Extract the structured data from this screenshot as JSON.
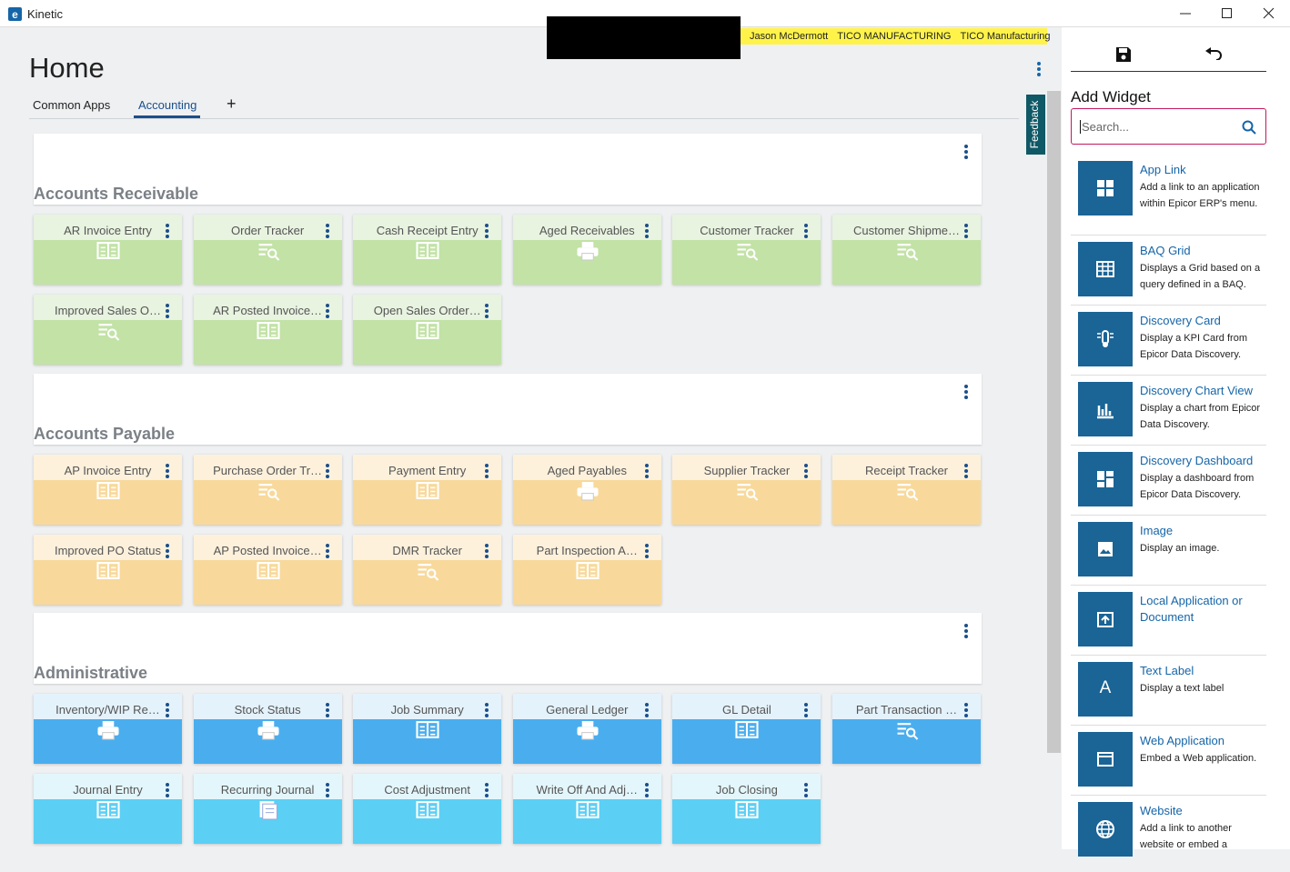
{
  "window": {
    "title": "Kinetic"
  },
  "user_bar": {
    "user": "Jason McDermott",
    "company": "TICO MANUFACTURING",
    "site": "TICO Manufacturing"
  },
  "page": {
    "title": "Home",
    "tabs": [
      "Common Apps",
      "Accounting"
    ],
    "active_tab": 1,
    "add_tab": "+",
    "feedback": "Feedback"
  },
  "sections": [
    {
      "title": "Accounts Receivable",
      "top": "#e8f3e0",
      "color": "#c2e2a6",
      "tiles": [
        {
          "label": "AR Invoice Entry",
          "icon": "form"
        },
        {
          "label": "Order Tracker",
          "icon": "search"
        },
        {
          "label": "Cash Receipt Entry",
          "icon": "form"
        },
        {
          "label": "Aged Receivables",
          "icon": "print"
        },
        {
          "label": "Customer Tracker",
          "icon": "search"
        },
        {
          "label": "Customer Shipme…",
          "icon": "search"
        },
        {
          "label": "Improved Sales O…",
          "icon": "search"
        },
        {
          "label": "AR Posted Invoice…",
          "icon": "form"
        },
        {
          "label": "Open Sales Order…",
          "icon": "form"
        }
      ]
    },
    {
      "title": "Accounts Payable",
      "top": "#fdf1dc",
      "color": "#f8d99b",
      "tiles": [
        {
          "label": "AP Invoice Entry",
          "icon": "form"
        },
        {
          "label": "Purchase Order Tr…",
          "icon": "search"
        },
        {
          "label": "Payment Entry",
          "icon": "form"
        },
        {
          "label": "Aged Payables",
          "icon": "print"
        },
        {
          "label": "Supplier Tracker",
          "icon": "search"
        },
        {
          "label": "Receipt Tracker",
          "icon": "search"
        },
        {
          "label": "Improved PO Status",
          "icon": "form"
        },
        {
          "label": "AP Posted Invoice…",
          "icon": "form"
        },
        {
          "label": "DMR Tracker",
          "icon": "search"
        },
        {
          "label": "Part Inspection A…",
          "icon": "form"
        }
      ]
    },
    {
      "title": "Administrative",
      "top": "#e4f2fb",
      "color": "#4aaeee",
      "tiles": [
        {
          "label": "Inventory/WIP Re…",
          "icon": "print"
        },
        {
          "label": "Stock Status",
          "icon": "print"
        },
        {
          "label": "Job Summary",
          "icon": "form"
        },
        {
          "label": "General Ledger",
          "icon": "print"
        },
        {
          "label": "GL Detail",
          "icon": "form"
        },
        {
          "label": "Part Transaction …",
          "icon": "search"
        },
        {
          "label": "Journal Entry",
          "icon": "form",
          "top": "#e3f6fc",
          "color": "#5ccff4"
        },
        {
          "label": "Recurring Journal",
          "icon": "journal",
          "top": "#e3f6fc",
          "color": "#5ccff4"
        },
        {
          "label": "Cost Adjustment",
          "icon": "form",
          "top": "#e3f6fc",
          "color": "#5ccff4"
        },
        {
          "label": "Write Off And Adj…",
          "icon": "form",
          "top": "#e3f6fc",
          "color": "#5ccff4"
        },
        {
          "label": "Job Closing",
          "icon": "form",
          "top": "#e3f6fc",
          "color": "#5ccff4"
        }
      ]
    }
  ],
  "sidebar": {
    "title": "Add Widget",
    "search_placeholder": "Search...",
    "widgets": [
      {
        "name": "App Link",
        "description": "Add a link to an application within Epicor ERP's menu.",
        "icon": "apps"
      },
      {
        "name": "BAQ Grid",
        "description": "Displays a Grid based on a query defined in a BAQ.",
        "icon": "grid"
      },
      {
        "name": "Discovery Card",
        "description": "Display a KPI Card from Epicor Data Discovery.",
        "icon": "card"
      },
      {
        "name": "Discovery Chart View",
        "description": "Display a chart from Epicor Data Discovery.",
        "icon": "chart"
      },
      {
        "name": "Discovery Dashboard",
        "description": "Display a dashboard from Epicor Data Discovery.",
        "icon": "dash"
      },
      {
        "name": "Image",
        "description": "Display an image.",
        "icon": "image"
      },
      {
        "name": "Local Application or Document",
        "icon": "upload"
      },
      {
        "name": "Text Label",
        "description": "Display a text label",
        "glyph": "A"
      },
      {
        "name": "Web Application",
        "description": "Embed a Web application.",
        "icon": "window"
      },
      {
        "name": "Website",
        "description": "Add a link to another website or embed a",
        "icon": "globe"
      }
    ]
  }
}
